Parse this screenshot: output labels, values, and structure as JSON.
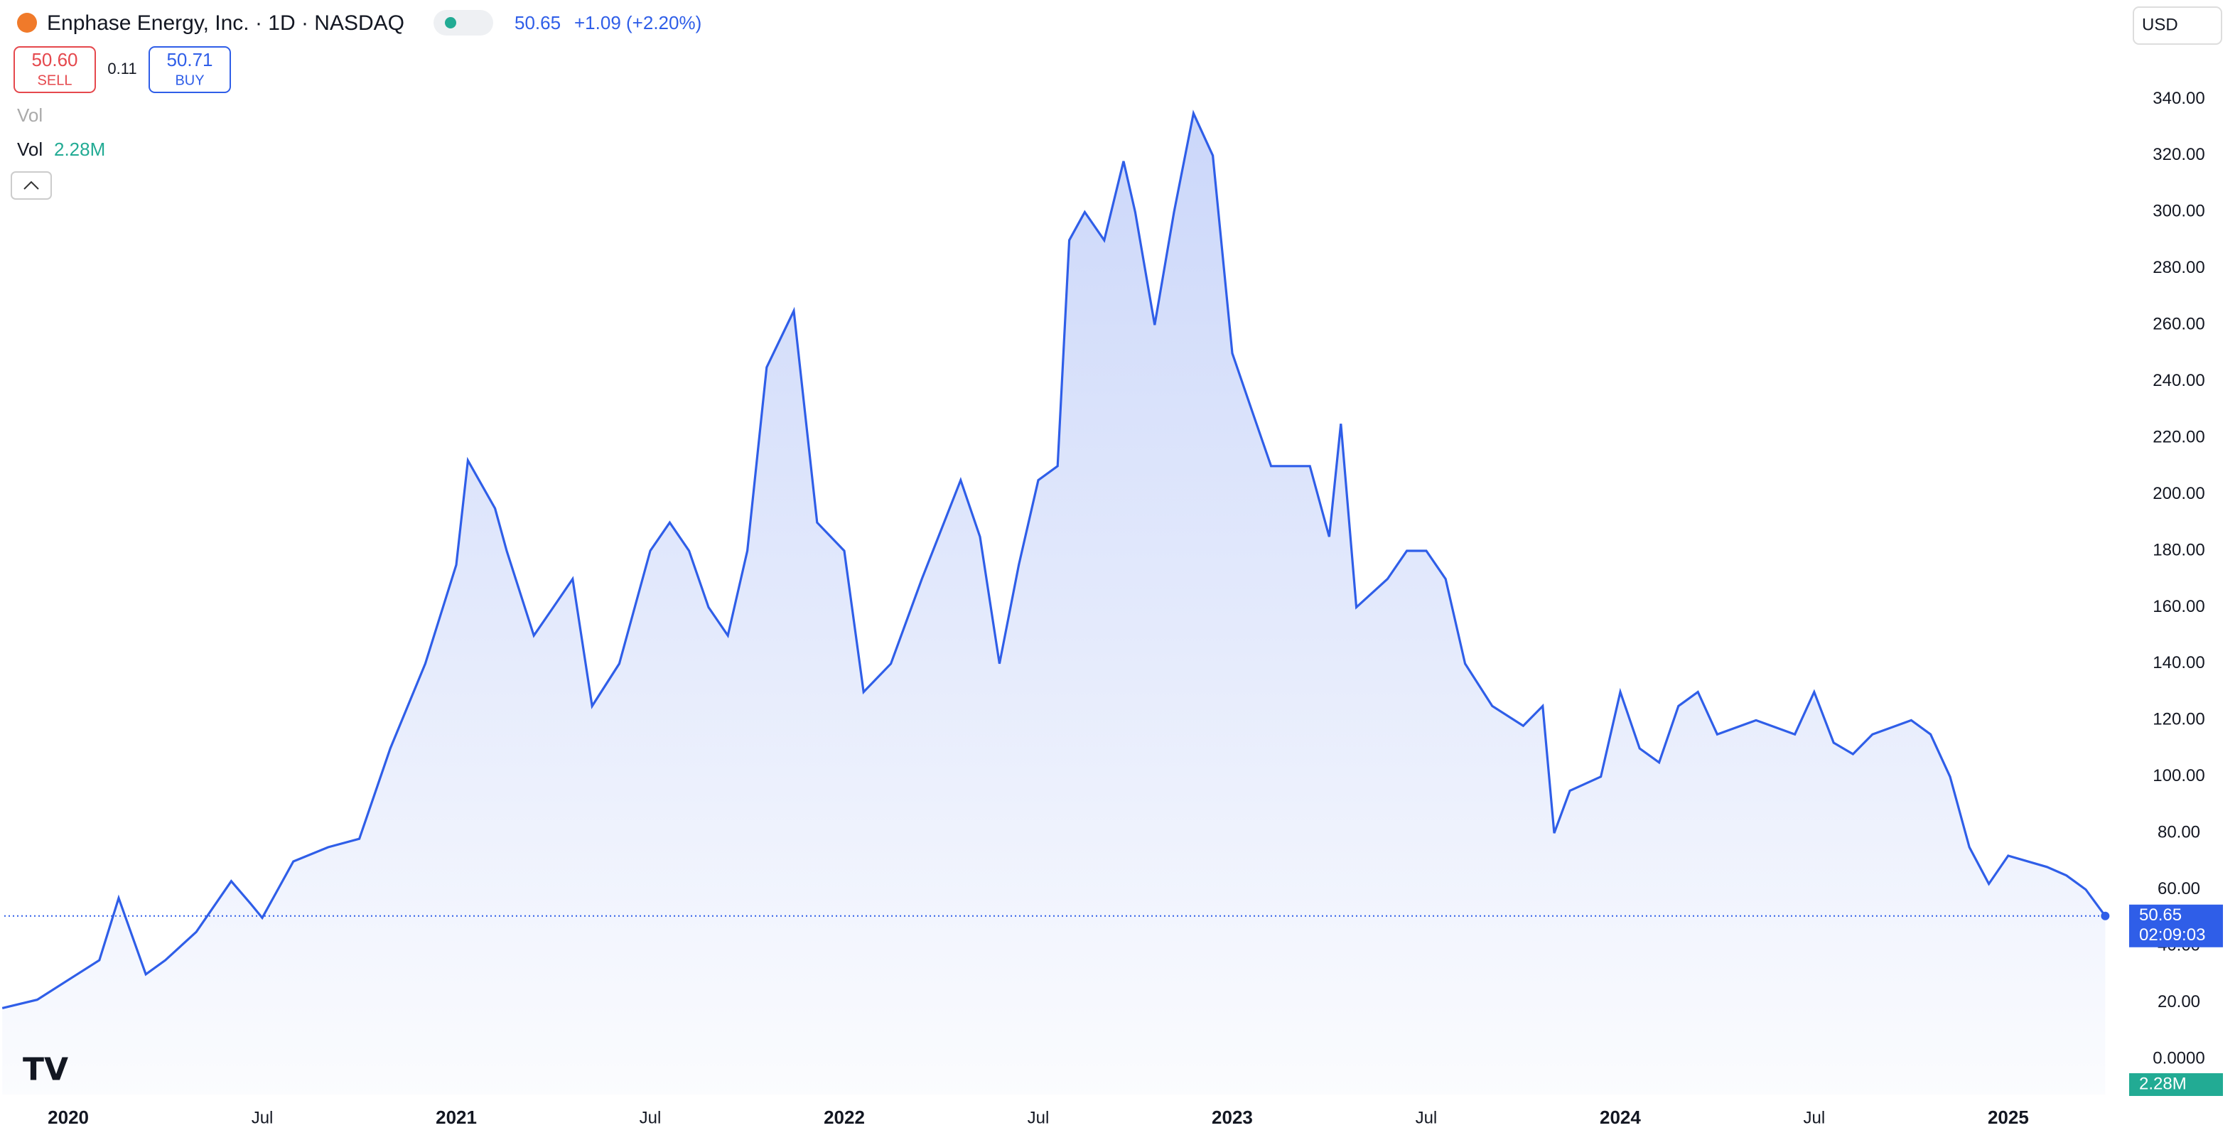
{
  "header": {
    "title": "Enphase Energy, Inc. · 1D · NASDAQ",
    "change": "+1.09 (+2.20%)",
    "sell_price": "50.60",
    "sell": "SELL",
    "spread": "0.11",
    "buy_price": "50.71",
    "buy": "BUY",
    "vol_hidden": "Vol",
    "vol": "Vol",
    "vol_value": "2.28M",
    "currency": "USD"
  },
  "chart_data": {
    "type": "line",
    "color": "#2f5ee8",
    "countdown": "02:09:03",
    "series": [
      {
        "name": "Enphase Energy, Inc.",
        "color": "#2f5ee8",
        "x": [
          2019.83,
          2019.92,
          2020.0,
          2020.08,
          2020.13,
          2020.2,
          2020.25,
          2020.33,
          2020.42,
          2020.47,
          2020.5,
          2020.58,
          2020.67,
          2020.75,
          2020.83,
          2020.92,
          2021.0,
          2021.03,
          2021.1,
          2021.13,
          2021.2,
          2021.25,
          2021.3,
          2021.35,
          2021.42,
          2021.5,
          2021.55,
          2021.6,
          2021.65,
          2021.7,
          2021.75,
          2021.8,
          2021.87,
          2021.93,
          2022.0,
          2022.05,
          2022.12,
          2022.2,
          2022.3,
          2022.35,
          2022.4,
          2022.45,
          2022.5,
          2022.55,
          2022.58,
          2022.62,
          2022.67,
          2022.72,
          2022.75,
          2022.8,
          2022.85,
          2022.9,
          2022.95,
          2023.0,
          2023.05,
          2023.1,
          2023.2,
          2023.25,
          2023.28,
          2023.32,
          2023.4,
          2023.45,
          2023.5,
          2023.55,
          2023.6,
          2023.67,
          2023.75,
          2023.8,
          2023.83,
          2023.87,
          2023.95,
          2024.0,
          2024.05,
          2024.1,
          2024.15,
          2024.2,
          2024.25,
          2024.35,
          2024.45,
          2024.5,
          2024.55,
          2024.6,
          2024.65,
          2024.75,
          2024.8,
          2024.85,
          2024.9,
          2024.95,
          2025.0,
          2025.1,
          2025.15,
          2025.2,
          2025.25
        ],
        "values": [
          18,
          21,
          28,
          35,
          57,
          30,
          35,
          45,
          63,
          55,
          50,
          70,
          75,
          78,
          110,
          140,
          175,
          212,
          195,
          180,
          150,
          160,
          170,
          125,
          140,
          180,
          190,
          180,
          160,
          150,
          180,
          245,
          265,
          190,
          180,
          130,
          140,
          170,
          205,
          185,
          140,
          175,
          205,
          210,
          290,
          300,
          290,
          318,
          300,
          260,
          300,
          335,
          320,
          250,
          230,
          210,
          210,
          185,
          225,
          160,
          170,
          180,
          180,
          170,
          140,
          125,
          118,
          125,
          80,
          95,
          100,
          130,
          110,
          105,
          125,
          130,
          115,
          120,
          115,
          130,
          112,
          108,
          115,
          120,
          115,
          100,
          75,
          62,
          72,
          68,
          65,
          60,
          50.65
        ]
      }
    ],
    "xlim": [
      2019.835,
      2025.264
    ],
    "ylim": [
      -12.6,
      360
    ],
    "xticks": [
      2020,
      {
        "value": 2020.5,
        "label": "Jul"
      },
      2021,
      {
        "value": 2021.5,
        "label": "Jul"
      },
      2022,
      {
        "value": 2022.5,
        "label": "Jul"
      },
      2023,
      {
        "value": 2023.5,
        "label": "Jul"
      },
      2024,
      {
        "value": 2024.5,
        "label": "Jul"
      },
      2025
    ],
    "yticks": [
      {
        "value": 0,
        "label": "0.0000"
      },
      {
        "value": 20,
        "label": "20.00"
      },
      {
        "value": 40,
        "label": "40.00"
      },
      {
        "value": 60,
        "label": "60.00"
      },
      {
        "value": 80,
        "label": "80.00"
      },
      {
        "value": 100,
        "label": "100.00"
      },
      {
        "value": 120,
        "label": "120.00"
      },
      {
        "value": 140,
        "label": "140.00"
      },
      {
        "value": 160,
        "label": "160.00"
      },
      {
        "value": 180,
        "label": "180.00"
      },
      {
        "value": 200,
        "label": "200.00"
      },
      {
        "value": 220,
        "label": "220.00"
      },
      {
        "value": 240,
        "label": "240.00"
      },
      {
        "value": 260,
        "label": "260.00"
      },
      {
        "value": 280,
        "label": "280.00"
      },
      {
        "value": 300,
        "label": "300.00"
      },
      {
        "value": 320,
        "label": "320.00"
      },
      {
        "value": 340,
        "label": "340.00"
      }
    ]
  }
}
